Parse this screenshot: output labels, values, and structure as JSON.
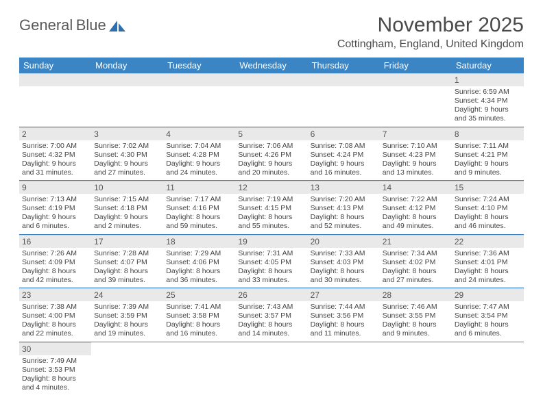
{
  "brand": {
    "name1": "General",
    "name2": "Blue"
  },
  "title": "November 2025",
  "location": "Cottingham, England, United Kingdom",
  "colors": {
    "header_bg": "#3b85c5",
    "header_fg": "#ffffff",
    "daybar_bg": "#e9e9e9",
    "row_border": "#3b85c5",
    "brand_gray": "#5a5a5a",
    "brand_blue": "#2f6fb0"
  },
  "day_headers": [
    "Sunday",
    "Monday",
    "Tuesday",
    "Wednesday",
    "Thursday",
    "Friday",
    "Saturday"
  ],
  "weeks": [
    [
      {
        "empty": true
      },
      {
        "empty": true
      },
      {
        "empty": true
      },
      {
        "empty": true
      },
      {
        "empty": true
      },
      {
        "empty": true
      },
      {
        "n": "1",
        "sr": "6:59 AM",
        "ss": "4:34 PM",
        "dl": "9 hours and 35 minutes."
      }
    ],
    [
      {
        "n": "2",
        "sr": "7:00 AM",
        "ss": "4:32 PM",
        "dl": "9 hours and 31 minutes."
      },
      {
        "n": "3",
        "sr": "7:02 AM",
        "ss": "4:30 PM",
        "dl": "9 hours and 27 minutes."
      },
      {
        "n": "4",
        "sr": "7:04 AM",
        "ss": "4:28 PM",
        "dl": "9 hours and 24 minutes."
      },
      {
        "n": "5",
        "sr": "7:06 AM",
        "ss": "4:26 PM",
        "dl": "9 hours and 20 minutes."
      },
      {
        "n": "6",
        "sr": "7:08 AM",
        "ss": "4:24 PM",
        "dl": "9 hours and 16 minutes."
      },
      {
        "n": "7",
        "sr": "7:10 AM",
        "ss": "4:23 PM",
        "dl": "9 hours and 13 minutes."
      },
      {
        "n": "8",
        "sr": "7:11 AM",
        "ss": "4:21 PM",
        "dl": "9 hours and 9 minutes."
      }
    ],
    [
      {
        "n": "9",
        "sr": "7:13 AM",
        "ss": "4:19 PM",
        "dl": "9 hours and 6 minutes."
      },
      {
        "n": "10",
        "sr": "7:15 AM",
        "ss": "4:18 PM",
        "dl": "9 hours and 2 minutes."
      },
      {
        "n": "11",
        "sr": "7:17 AM",
        "ss": "4:16 PM",
        "dl": "8 hours and 59 minutes."
      },
      {
        "n": "12",
        "sr": "7:19 AM",
        "ss": "4:15 PM",
        "dl": "8 hours and 55 minutes."
      },
      {
        "n": "13",
        "sr": "7:20 AM",
        "ss": "4:13 PM",
        "dl": "8 hours and 52 minutes."
      },
      {
        "n": "14",
        "sr": "7:22 AM",
        "ss": "4:12 PM",
        "dl": "8 hours and 49 minutes."
      },
      {
        "n": "15",
        "sr": "7:24 AM",
        "ss": "4:10 PM",
        "dl": "8 hours and 46 minutes."
      }
    ],
    [
      {
        "n": "16",
        "sr": "7:26 AM",
        "ss": "4:09 PM",
        "dl": "8 hours and 42 minutes."
      },
      {
        "n": "17",
        "sr": "7:28 AM",
        "ss": "4:07 PM",
        "dl": "8 hours and 39 minutes."
      },
      {
        "n": "18",
        "sr": "7:29 AM",
        "ss": "4:06 PM",
        "dl": "8 hours and 36 minutes."
      },
      {
        "n": "19",
        "sr": "7:31 AM",
        "ss": "4:05 PM",
        "dl": "8 hours and 33 minutes."
      },
      {
        "n": "20",
        "sr": "7:33 AM",
        "ss": "4:03 PM",
        "dl": "8 hours and 30 minutes."
      },
      {
        "n": "21",
        "sr": "7:34 AM",
        "ss": "4:02 PM",
        "dl": "8 hours and 27 minutes."
      },
      {
        "n": "22",
        "sr": "7:36 AM",
        "ss": "4:01 PM",
        "dl": "8 hours and 24 minutes."
      }
    ],
    [
      {
        "n": "23",
        "sr": "7:38 AM",
        "ss": "4:00 PM",
        "dl": "8 hours and 22 minutes."
      },
      {
        "n": "24",
        "sr": "7:39 AM",
        "ss": "3:59 PM",
        "dl": "8 hours and 19 minutes."
      },
      {
        "n": "25",
        "sr": "7:41 AM",
        "ss": "3:58 PM",
        "dl": "8 hours and 16 minutes."
      },
      {
        "n": "26",
        "sr": "7:43 AM",
        "ss": "3:57 PM",
        "dl": "8 hours and 14 minutes."
      },
      {
        "n": "27",
        "sr": "7:44 AM",
        "ss": "3:56 PM",
        "dl": "8 hours and 11 minutes."
      },
      {
        "n": "28",
        "sr": "7:46 AM",
        "ss": "3:55 PM",
        "dl": "8 hours and 9 minutes."
      },
      {
        "n": "29",
        "sr": "7:47 AM",
        "ss": "3:54 PM",
        "dl": "8 hours and 6 minutes."
      }
    ],
    [
      {
        "n": "30",
        "sr": "7:49 AM",
        "ss": "3:53 PM",
        "dl": "8 hours and 4 minutes."
      },
      {
        "empty": true
      },
      {
        "empty": true
      },
      {
        "empty": true
      },
      {
        "empty": true
      },
      {
        "empty": true
      },
      {
        "empty": true
      }
    ]
  ],
  "labels": {
    "sunrise": "Sunrise: ",
    "sunset": "Sunset: ",
    "daylight": "Daylight: "
  }
}
